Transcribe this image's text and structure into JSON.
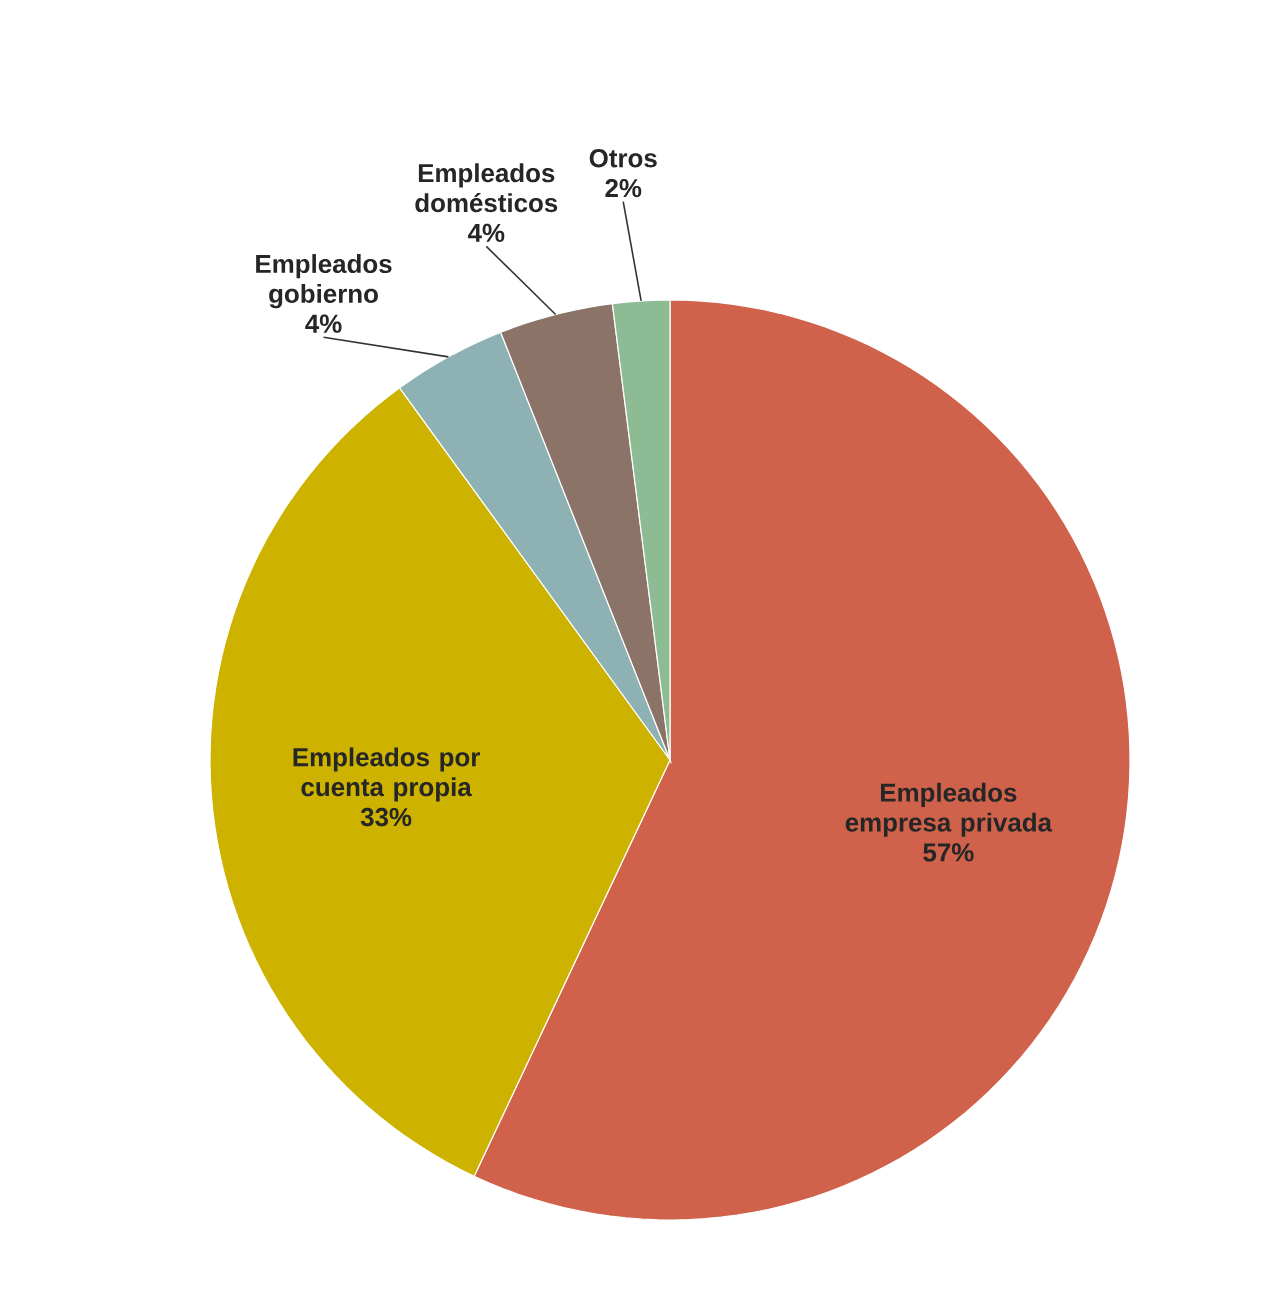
{
  "chart_data": {
    "type": "pie",
    "categories": [
      "Empleados empresa privada",
      "Empleados por cuenta propia",
      "Empleados gobierno",
      "Empleados domésticos",
      "Otros"
    ],
    "values": [
      57,
      33,
      4,
      4,
      2
    ],
    "value_labels": [
      "57%",
      "33%",
      "4%",
      "4%",
      "2%"
    ],
    "colors": [
      "#d0624b",
      "#cdb300",
      "#8eb2b4",
      "#8b7368",
      "#8dbb93"
    ]
  }
}
